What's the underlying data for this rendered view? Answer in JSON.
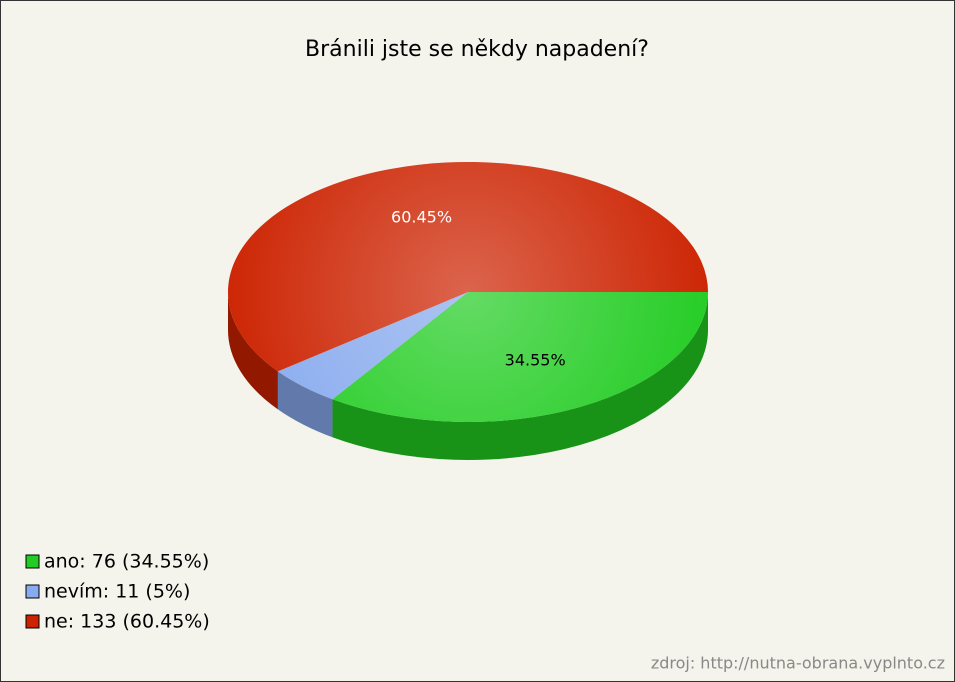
{
  "chart_data": {
    "type": "pie",
    "title": "Bránili jste se někdy napadení?",
    "categories": [
      "ano",
      "nevím",
      "ne"
    ],
    "values": [
      34.55,
      5,
      60.45
    ],
    "value_labels": [
      "34.55%",
      null,
      "60.45%"
    ],
    "legend_labels": [
      "ano: 76 (34.55%)",
      "nevím: 11 (5%)",
      "ne: 133 (60.45%)"
    ],
    "colors": [
      "#22cc22",
      "#88aaee",
      "#cc2200"
    ],
    "label_colors": [
      "#000000",
      "#000000",
      "#ffffff"
    ],
    "legend": "lower left",
    "source": "zdroj: http://nutna-obrana.vyplnto.cz"
  }
}
